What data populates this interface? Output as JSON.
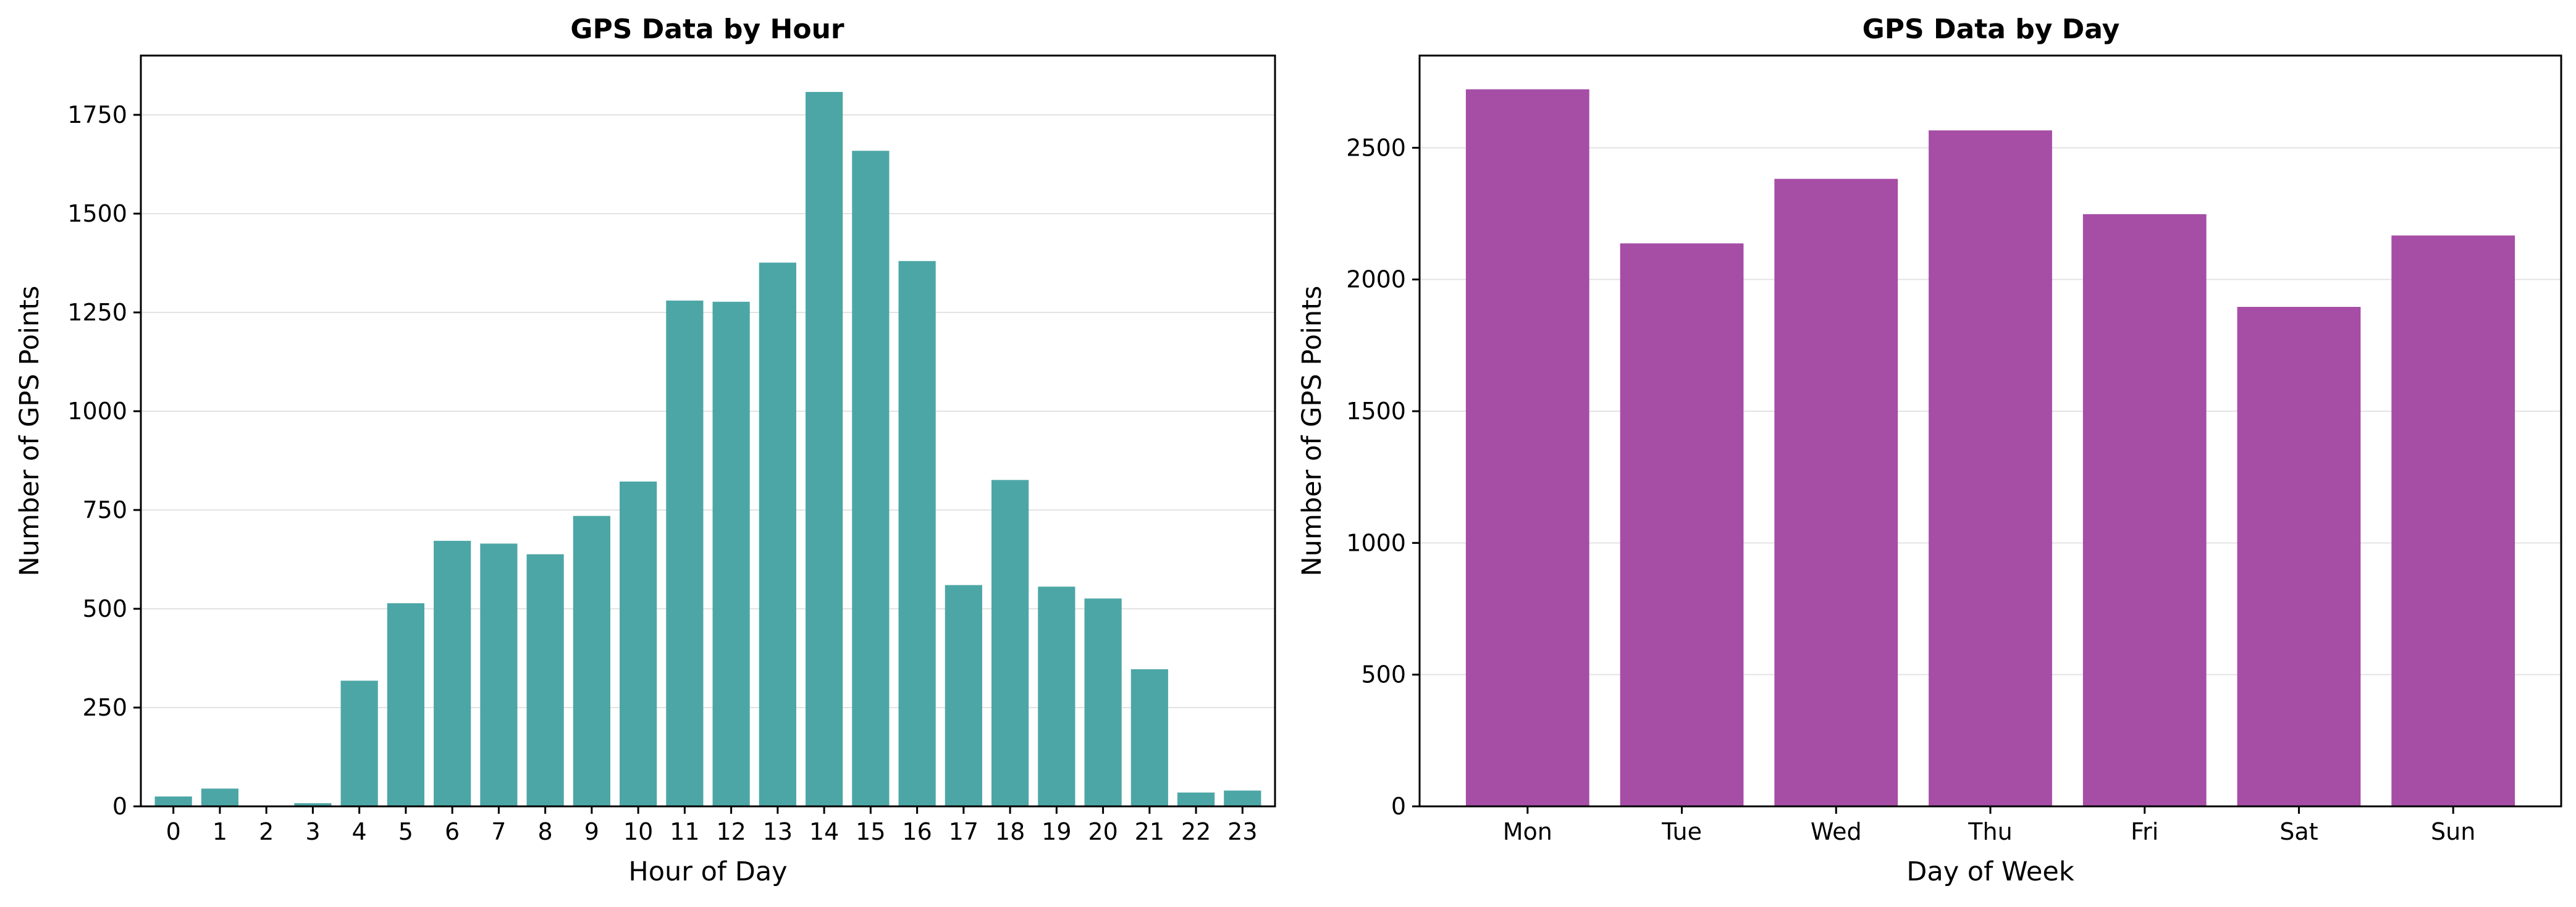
{
  "chart_data": [
    {
      "type": "bar",
      "title": "GPS Data by Hour",
      "xlabel": "Hour of Day",
      "ylabel": "Number of GPS Points",
      "categories": [
        "0",
        "1",
        "2",
        "3",
        "4",
        "5",
        "6",
        "7",
        "8",
        "9",
        "10",
        "11",
        "12",
        "13",
        "14",
        "15",
        "16",
        "17",
        "18",
        "19",
        "20",
        "21",
        "22",
        "23"
      ],
      "values": [
        25,
        45,
        0,
        8,
        318,
        514,
        672,
        665,
        638,
        735,
        822,
        1280,
        1277,
        1376,
        1808,
        1659,
        1380,
        560,
        826,
        556,
        526,
        347,
        35,
        40
      ],
      "ylim": [
        0,
        1900
      ],
      "yticks": [
        0,
        250,
        500,
        750,
        1000,
        1250,
        1500,
        1750
      ],
      "grid": true,
      "color": "#4da6a6"
    },
    {
      "type": "bar",
      "title": "GPS Data by Day",
      "xlabel": "Day of Week",
      "ylabel": "Number of GPS Points",
      "categories": [
        "Mon",
        "Tue",
        "Wed",
        "Thu",
        "Fri",
        "Sat",
        "Sun"
      ],
      "values": [
        2722,
        2137,
        2382,
        2566,
        2248,
        1896,
        2167
      ],
      "ylim": [
        0,
        2850
      ],
      "yticks": [
        0,
        500,
        1000,
        1500,
        2000,
        2500
      ],
      "grid": true,
      "color": "#a64da6"
    }
  ]
}
